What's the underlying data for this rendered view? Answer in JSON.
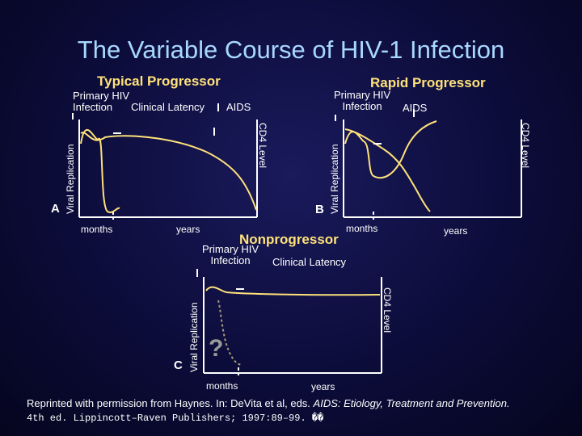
{
  "title": "The Variable Course of HIV-1 Infection",
  "panels": {
    "a": {
      "letter": "A",
      "heading": "Typical Progressor",
      "phase_primary": "Primary HIV\nInfection",
      "phase_latency": "Clinical Latency",
      "phase_aids": "AIDS",
      "left_axis": "Viral Replication",
      "right_axis": "CD4 Level",
      "x_months": "months",
      "x_years": "years"
    },
    "b": {
      "letter": "B",
      "heading": "Rapid Progressor",
      "phase_primary": "Primary HIV\nInfection",
      "phase_aids": "AIDS",
      "left_axis": "Viral Replication",
      "right_axis": "CD4 Level",
      "x_months": "months",
      "x_years": "years"
    },
    "c": {
      "letter": "C",
      "heading": "Nonprogressor",
      "phase_primary": "Primary HIV\nInfection",
      "phase_latency": "Clinical Latency",
      "left_axis": "Viral Replication",
      "right_axis": "CD4 Level",
      "x_months": "months",
      "x_years": "years",
      "unknown_mark": "?"
    }
  },
  "footer": {
    "line1_pre": "Reprinted with permission from Haynes.  In:  DeVita et al, eds.  ",
    "line1_italic": "AIDS: Etiology, Treatment and Prevention.",
    "line2": "4th ed.  Lippincott–Raven Publishers; 1997:89–99. ��"
  },
  "colors": {
    "background": "#0c0c3a",
    "title": "#a8d8ff",
    "heading": "#ffe27a",
    "curve_viral": "#ffe27a",
    "curve_cd4": "#ffe27a",
    "axis": "#ffffff"
  }
}
